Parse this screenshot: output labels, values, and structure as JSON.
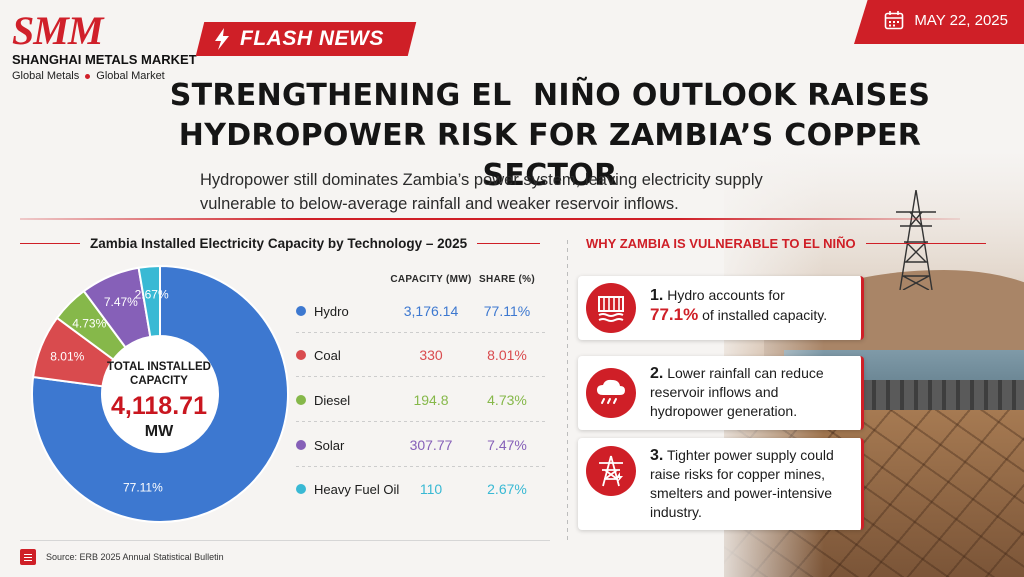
{
  "brand": {
    "logo_text": "SMM",
    "name": "SHANGHAI METALS MARKET",
    "tagline_left": "Global Metals",
    "tagline_right": "Global Market"
  },
  "flash_label": "FLASH NEWS",
  "date": "MAY 22, 2025",
  "headline_line1": "STRENGTHENING EL  NIÑO OUTLOOK RAISES",
  "headline_line2": "HYDROPOWER RISK FOR ZAMBIA’S COPPER SECTOR",
  "subhead_line1": "Hydropower still dominates Zambia’s power system, leaving electricity supply",
  "subhead_line2": "vulnerable to below-average rainfall and weaker reservoir inflows.",
  "colors": {
    "accent": "#cf1f27",
    "hydro": "#3d78d0",
    "coal": "#d94b4e",
    "diesel": "#86b84a",
    "solar": "#8660b8",
    "hfo": "#39b9d4"
  },
  "chart_data": {
    "type": "pie",
    "title": "Zambia Installed Electricity Capacity by Technology – 2025",
    "center_label_line1": "TOTAL INSTALLED",
    "center_label_line2": "CAPACITY",
    "total": "4,118.71",
    "total_unit": "MW",
    "column_capacity": "CAPACITY (MW)",
    "column_share": "SHARE (%)",
    "categories": [
      "Hydro",
      "Coal",
      "Diesel",
      "Solar",
      "Heavy Fuel Oil"
    ],
    "capacity": [
      3176.14,
      330,
      194.8,
      307.77,
      110
    ],
    "capacity_labels": [
      "3,176.14",
      "330",
      "194.8",
      "307.77",
      "110"
    ],
    "values": [
      77.11,
      8.01,
      4.73,
      7.47,
      2.67
    ],
    "share_labels": [
      "77.11%",
      "8.01%",
      "4.73%",
      "7.47%",
      "2.67%"
    ],
    "colors": [
      "#3d78d0",
      "#d94b4e",
      "#86b84a",
      "#8660b8",
      "#39b9d4"
    ]
  },
  "why": {
    "title": "WHY ZAMBIA IS VULNERABLE TO EL NIÑO",
    "items": [
      {
        "num": "1.",
        "text_a": "Hydro accounts for",
        "highlight": "77.1%",
        "text_b": "of installed capacity.",
        "icon": "dam-icon"
      },
      {
        "num": "2.",
        "text_a": "Lower rainfall can reduce",
        "text_b": "reservoir inflows and",
        "text_c": "hydropower generation.",
        "icon": "rain-cloud-icon"
      },
      {
        "num": "3.",
        "text_a": "Tighter power supply could",
        "text_b": "raise risks for copper mines,",
        "text_c": "smelters and power-intensive",
        "text_d": "industry.",
        "icon": "power-tower-icon"
      }
    ]
  },
  "footer_source": "Source: ERB 2025 Annual Statistical Bulletin"
}
